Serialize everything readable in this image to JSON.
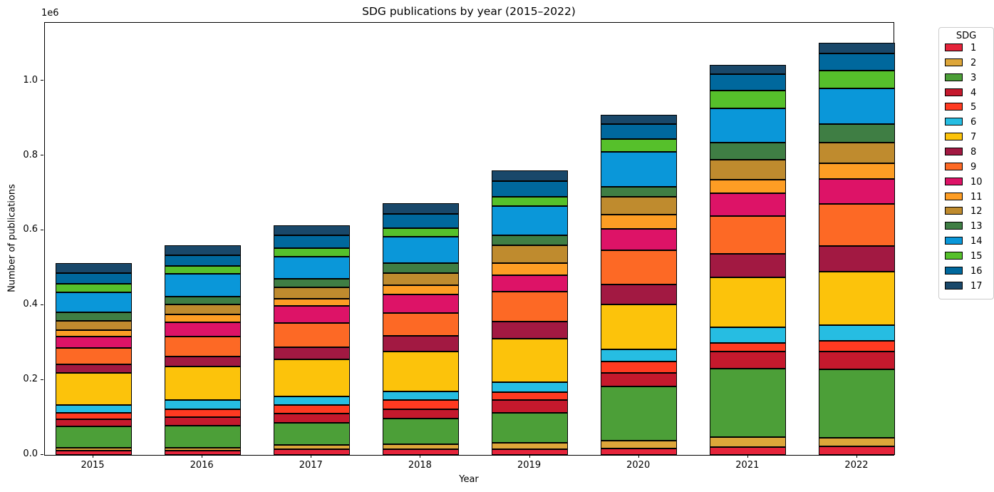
{
  "figure": {
    "title": "SDG publications by year (2015–2022)",
    "x_axis_label": "Year",
    "y_axis_label": "Number of publications",
    "offset_label": "1e6"
  },
  "axes": {
    "y_tick_labels": [
      "0.0",
      "0.2",
      "0.4",
      "0.6",
      "0.8",
      "1.0"
    ],
    "y_tick_values": [
      0,
      200000,
      400000,
      600000,
      800000,
      1000000
    ],
    "x_tick_labels": [
      "2015",
      "2016",
      "2017",
      "2018",
      "2019",
      "2020",
      "2021",
      "2022"
    ]
  },
  "legend": {
    "title": "SDG"
  },
  "chart_data": {
    "type": "bar",
    "stacked": true,
    "title": "SDG publications by year (2015–2022)",
    "xlabel": "Year",
    "ylabel": "Number of publications",
    "categories": [
      2015,
      2016,
      2017,
      2018,
      2019,
      2020,
      2021,
      2022
    ],
    "ylim": [
      0,
      1156000
    ],
    "grid": false,
    "legend_position": "outside upper right",
    "bar_edge_color": "#000000",
    "series": [
      {
        "name": "1",
        "color": "#E5243B",
        "values": [
          12000,
          11000,
          15000,
          15000,
          16000,
          17000,
          21000,
          22000
        ]
      },
      {
        "name": "2",
        "color": "#DDA63A",
        "values": [
          8000,
          8000,
          11000,
          14000,
          17000,
          21000,
          26000,
          23000
        ]
      },
      {
        "name": "3",
        "color": "#4C9F38",
        "values": [
          56000,
          59000,
          60000,
          69000,
          79000,
          145000,
          184000,
          183000
        ]
      },
      {
        "name": "4",
        "color": "#C5192D",
        "values": [
          20000,
          24000,
          25000,
          25000,
          34000,
          37000,
          45000,
          49000
        ]
      },
      {
        "name": "5",
        "color": "#FF3A21",
        "values": [
          17000,
          20000,
          23000,
          23000,
          22000,
          29000,
          24000,
          28000
        ]
      },
      {
        "name": "6",
        "color": "#26BDE2",
        "values": [
          21000,
          24000,
          22000,
          24000,
          27000,
          34000,
          42000,
          42000
        ]
      },
      {
        "name": "7",
        "color": "#FCC30B",
        "values": [
          85000,
          90000,
          99000,
          106000,
          116000,
          119000,
          133000,
          144000
        ]
      },
      {
        "name": "8",
        "color": "#A21942",
        "values": [
          23000,
          27000,
          33000,
          42000,
          46000,
          54000,
          63000,
          68000
        ]
      },
      {
        "name": "9",
        "color": "#FD6925",
        "values": [
          45000,
          54000,
          65000,
          62000,
          80000,
          92000,
          101000,
          112000
        ]
      },
      {
        "name": "10",
        "color": "#DD1367",
        "values": [
          30000,
          37000,
          46000,
          49000,
          44000,
          57000,
          62000,
          68000
        ]
      },
      {
        "name": "11",
        "color": "#FD9D24",
        "values": [
          17000,
          21000,
          19000,
          25000,
          32000,
          38000,
          36000,
          41000
        ]
      },
      {
        "name": "12",
        "color": "#BF8B2E",
        "values": [
          24000,
          27000,
          31000,
          33000,
          48000,
          48000,
          53000,
          55000
        ]
      },
      {
        "name": "13",
        "color": "#3F7E44",
        "values": [
          23000,
          21000,
          22000,
          27000,
          27000,
          27000,
          46000,
          51000
        ]
      },
      {
        "name": "14",
        "color": "#0A97D9",
        "values": [
          53000,
          61000,
          60000,
          70000,
          78000,
          93000,
          92000,
          94000
        ]
      },
      {
        "name": "15",
        "color": "#56C02B",
        "values": [
          23000,
          21000,
          22000,
          23000,
          25000,
          35000,
          46000,
          49000
        ]
      },
      {
        "name": "16",
        "color": "#00689D",
        "values": [
          30000,
          29000,
          35000,
          38000,
          42000,
          40000,
          45000,
          45000
        ]
      },
      {
        "name": "17",
        "color": "#19486A",
        "values": [
          26000,
          26000,
          27000,
          29000,
          29000,
          24000,
          25000,
          28000
        ]
      }
    ]
  }
}
